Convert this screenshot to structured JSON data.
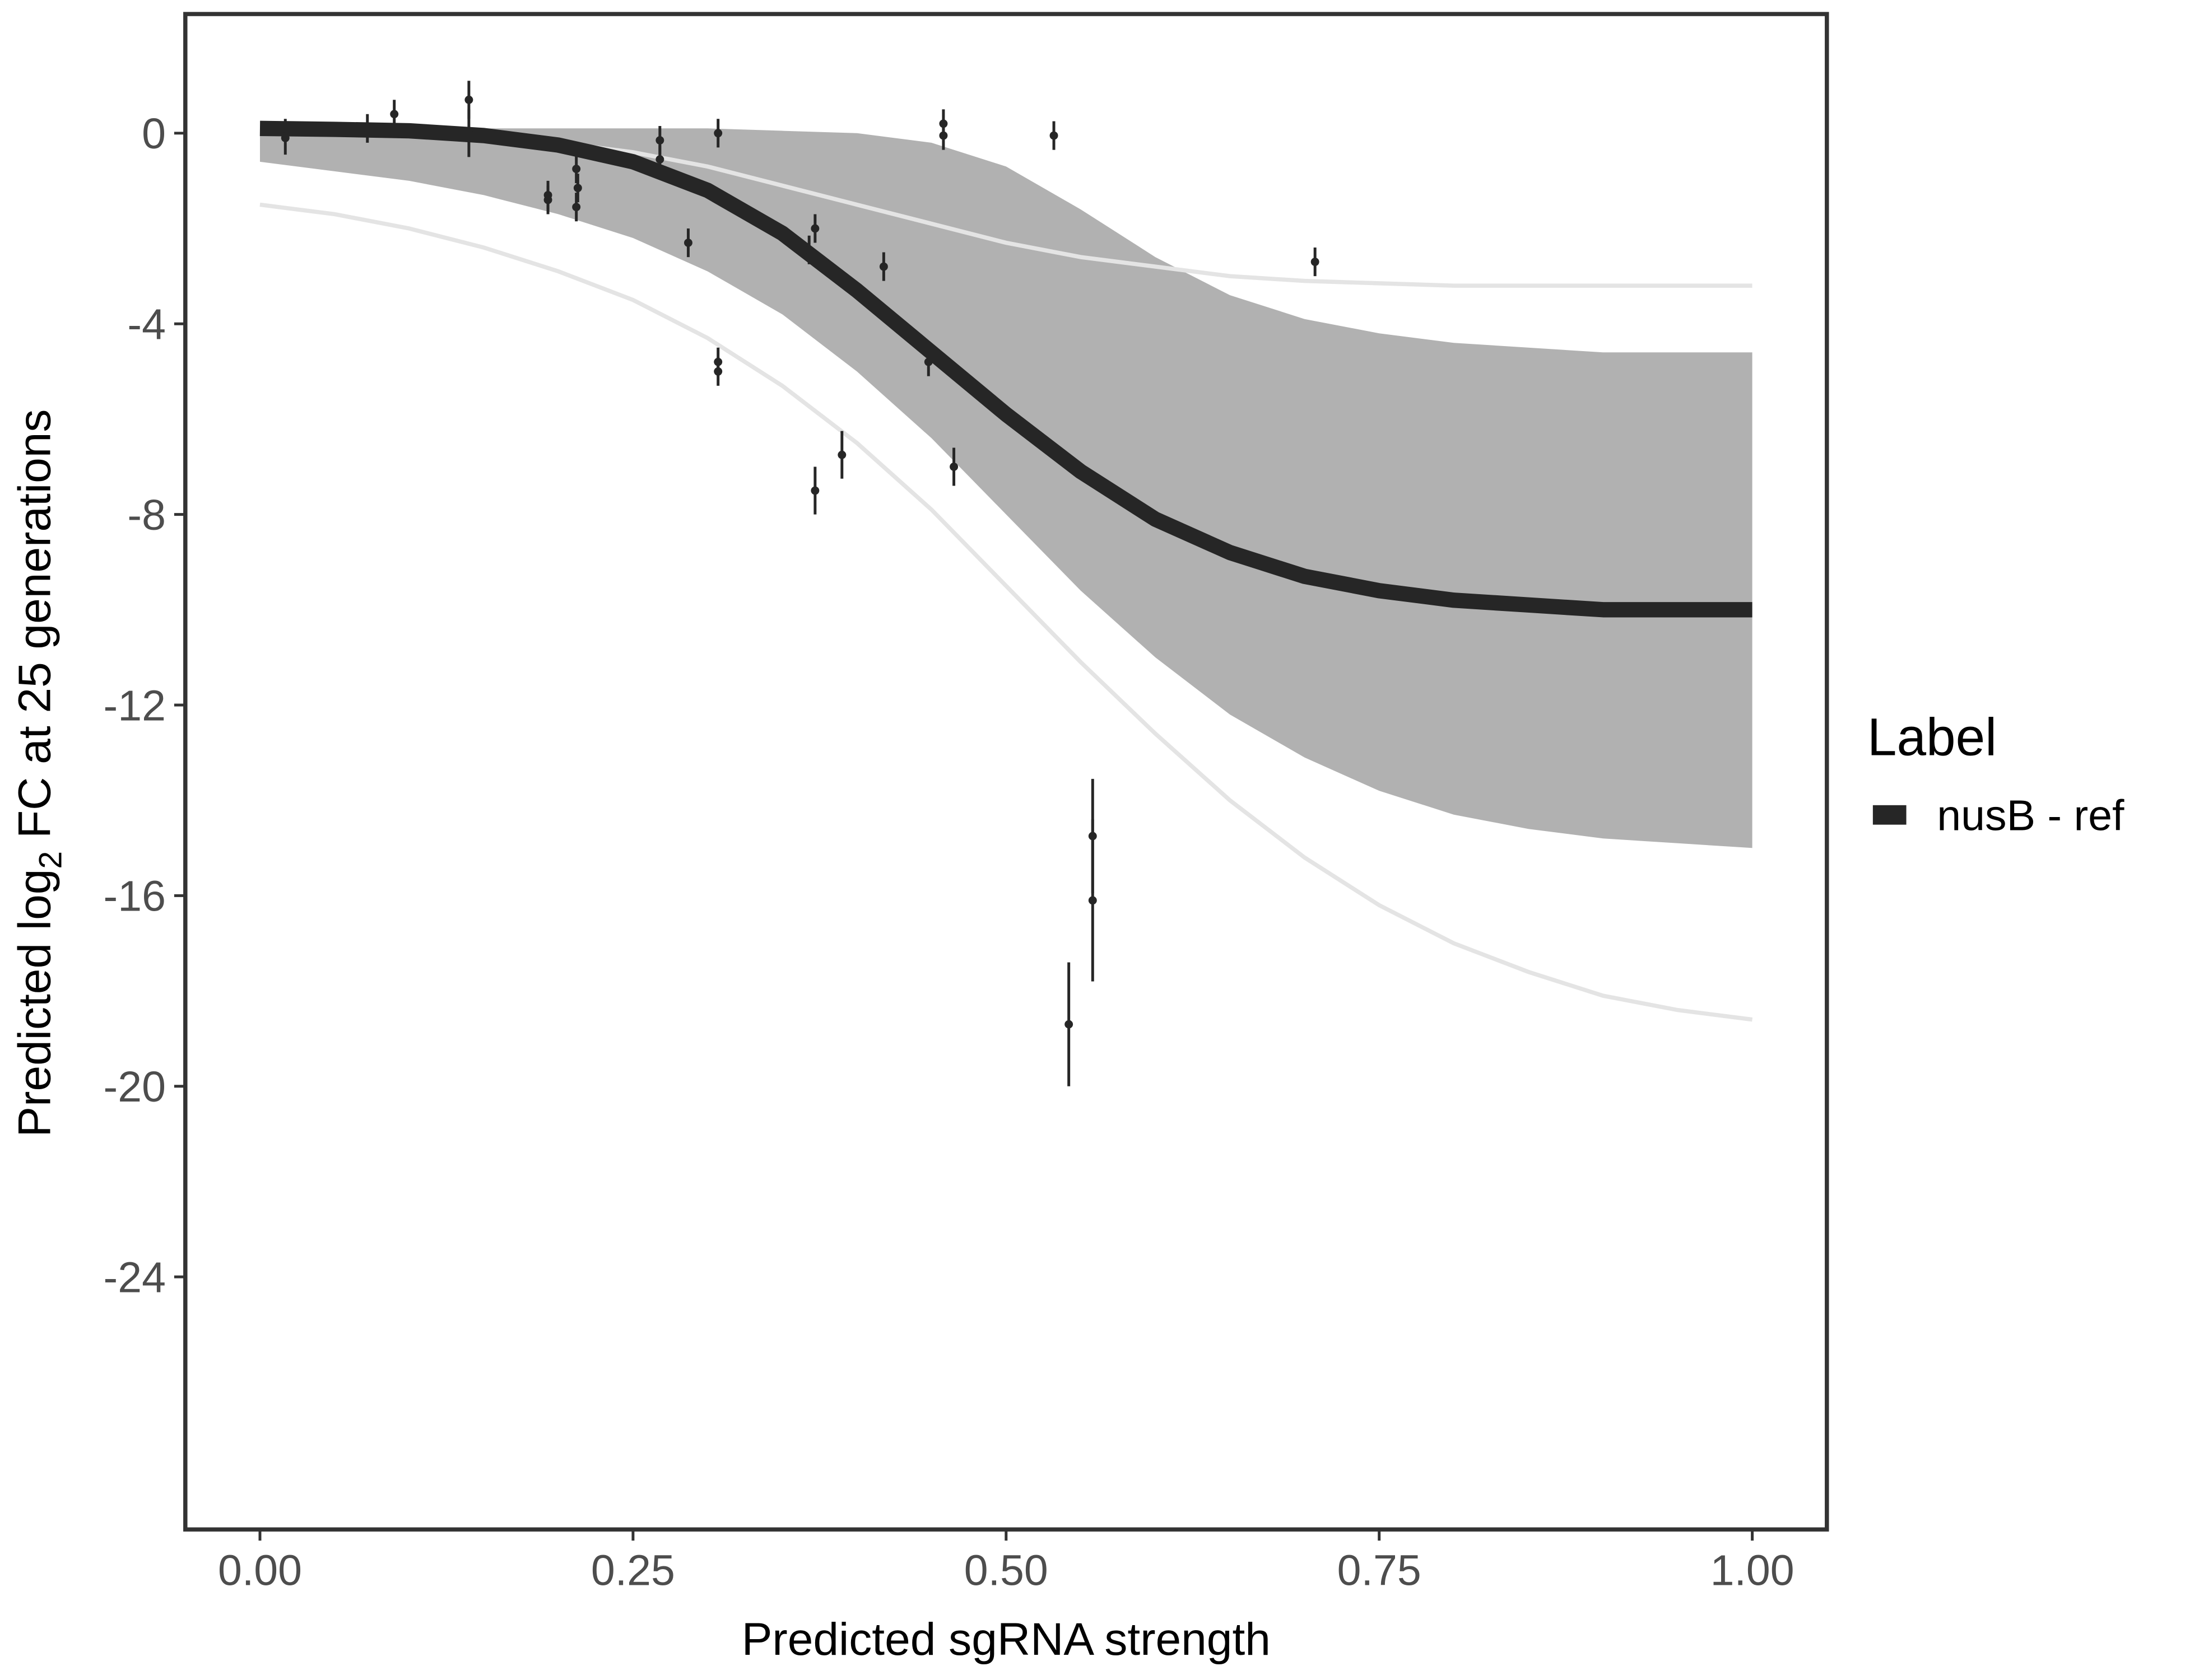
{
  "chart_data": {
    "type": "line",
    "x_label": "Predicted sgRNA strength",
    "y_label": "Predicted  log",
    "y_label_sub": "2",
    "y_label_rest": " FC at 25 generations",
    "legend_title": "Label",
    "legend_position": "right",
    "xlim": [
      -0.05,
      1.05
    ],
    "ylim": [
      -29.3,
      2.5
    ],
    "xticks": [
      {
        "value": 0,
        "label": "0.00"
      },
      {
        "value": 0.25,
        "label": "0.25"
      },
      {
        "value": 0.5,
        "label": "0.50"
      },
      {
        "value": 0.75,
        "label": "0.75"
      },
      {
        "value": 1,
        "label": "1.00"
      }
    ],
    "yticks": [
      0,
      -4,
      -8,
      -12,
      -16,
      -20,
      -24
    ],
    "x": [
      0,
      0.05,
      0.1,
      0.15,
      0.2,
      0.25,
      0.3,
      0.35,
      0.4,
      0.45,
      0.5,
      0.55,
      0.6,
      0.65,
      0.7,
      0.75,
      0.8,
      0.85,
      0.9,
      0.95,
      1
    ],
    "series": [
      {
        "name": "nusB - ref",
        "color": "#262626",
        "values": [
          0.1,
          0.08,
          0.05,
          -0.05,
          -0.25,
          -0.6,
          -1.2,
          -2.1,
          -3.3,
          -4.6,
          -5.9,
          -7.1,
          -8.1,
          -8.8,
          -9.3,
          -9.6,
          -9.8,
          -9.9,
          -10,
          -10,
          -10
        ]
      }
    ],
    "band": {
      "color": "#a9a9a9",
      "upper": [
        0.1,
        0.1,
        0.1,
        0.1,
        0.1,
        0.1,
        0.1,
        0.05,
        0,
        -0.2,
        -0.7,
        -1.6,
        -2.6,
        -3.4,
        -3.9,
        -4.2,
        -4.4,
        -4.5,
        -4.6,
        -4.6,
        -4.6
      ],
      "lower": [
        -0.6,
        -0.8,
        -1.0,
        -1.3,
        -1.7,
        -2.2,
        -2.9,
        -3.8,
        -5.0,
        -6.4,
        -8.0,
        -9.6,
        -11.0,
        -12.2,
        -13.1,
        -13.8,
        -14.3,
        -14.6,
        -14.8,
        -14.9,
        -15.0
      ]
    },
    "faint_curves": [
      {
        "color": "#e4e4e4",
        "values": [
          0,
          0,
          0,
          -0.05,
          -0.2,
          -0.4,
          -0.7,
          -1.1,
          -1.5,
          -1.9,
          -2.3,
          -2.6,
          -2.8,
          -3.0,
          -3.1,
          -3.15,
          -3.2,
          -3.2,
          -3.2,
          -3.2,
          -3.2
        ]
      },
      {
        "color": "#e4e4e4",
        "values": [
          -1.5,
          -1.7,
          -2.0,
          -2.4,
          -2.9,
          -3.5,
          -4.3,
          -5.3,
          -6.5,
          -7.9,
          -9.5,
          -11.1,
          -12.6,
          -14.0,
          -15.2,
          -16.2,
          -17.0,
          -17.6,
          -18.1,
          -18.4,
          -18.6
        ]
      }
    ],
    "points": {
      "color": "#262626",
      "x": [
        0.017,
        0.017,
        0.072,
        0.09,
        0.14,
        0.14,
        0.193,
        0.193,
        0.212,
        0.213,
        0.212,
        0.268,
        0.268,
        0.287,
        0.307,
        0.307,
        0.307,
        0.368,
        0.372,
        0.372,
        0.39,
        0.418,
        0.448,
        0.458,
        0.458,
        0.465,
        0.532,
        0.542,
        0.558,
        0.558,
        0.707
      ],
      "y": [
        -0.1,
        0.1,
        0.1,
        0.4,
        0.7,
        0,
        -1.3,
        -1.4,
        -0.75,
        -1.15,
        -1.55,
        -0.15,
        -0.55,
        -2.3,
        0,
        -4.8,
        -5.0,
        -2.45,
        -2.0,
        -7.5,
        -6.75,
        -2.8,
        -4.8,
        0.2,
        -0.05,
        -7.0,
        -0.05,
        -18.7,
        -14.75,
        -16.1,
        -2.7
      ],
      "err": [
        0.35,
        0.2,
        0.3,
        0.3,
        0.4,
        0.5,
        0.3,
        0.3,
        0.3,
        0.3,
        0.3,
        0.3,
        0.3,
        0.3,
        0.3,
        0.3,
        0.3,
        0.3,
        0.3,
        0.5,
        0.5,
        0.3,
        0.3,
        0.3,
        0.3,
        0.4,
        0.3,
        1.3,
        1.2,
        1.7,
        0.3
      ]
    }
  }
}
